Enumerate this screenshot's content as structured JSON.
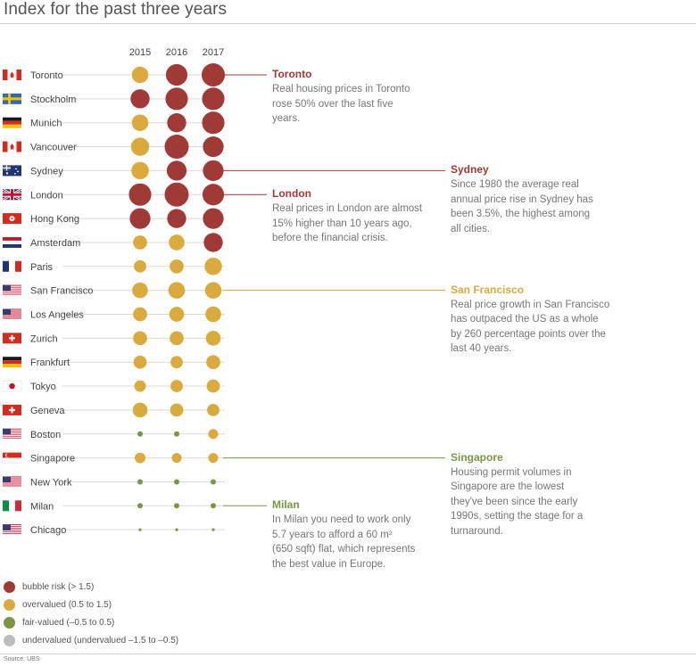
{
  "title": "Index for the past three years",
  "source": "Source: UBS",
  "colors": {
    "bubble": "#a03a36",
    "over": "#dbaa3c",
    "fair": "#7c9544",
    "under": "#bdbdbd"
  },
  "chart_data": {
    "type": "scatter",
    "years": [
      "2015",
      "2016",
      "2017"
    ],
    "rows": [
      {
        "city": "Toronto",
        "flag": "canada-flag-icon",
        "values": [
          1.3,
          1.9,
          2.1
        ]
      },
      {
        "city": "Stockholm",
        "flag": "sweden-flag-icon",
        "values": [
          1.6,
          2.0,
          2.0
        ]
      },
      {
        "city": "Munich",
        "flag": "germany-flag-icon",
        "values": [
          1.3,
          1.6,
          2.0
        ]
      },
      {
        "city": "Vancouver",
        "flag": "canada-flag-icon",
        "values": [
          1.5,
          2.2,
          1.8
        ]
      },
      {
        "city": "Sydney",
        "flag": "australia-flag-icon",
        "values": [
          1.4,
          1.7,
          1.8
        ]
      },
      {
        "city": "London",
        "flag": "uk-flag-icon",
        "values": [
          2.0,
          2.2,
          1.9
        ]
      },
      {
        "city": "Hong Kong",
        "flag": "hong-kong-flag-icon",
        "values": [
          1.8,
          1.6,
          1.8
        ]
      },
      {
        "city": "Amsterdam",
        "flag": "netherlands-flag-icon",
        "values": [
          1.0,
          1.2,
          1.6
        ]
      },
      {
        "city": "Paris",
        "flag": "france-flag-icon",
        "values": [
          0.8,
          1.0,
          1.4
        ]
      },
      {
        "city": "San Francisco",
        "flag": "usa-flag-icon",
        "values": [
          1.2,
          1.3,
          1.3
        ]
      },
      {
        "city": "Los Angeles",
        "flag": "usa-flag-icon",
        "values": [
          1.0,
          1.1,
          1.2
        ]
      },
      {
        "city": "Zurich",
        "flag": "switzerland-flag-icon",
        "values": [
          1.0,
          1.0,
          1.1
        ]
      },
      {
        "city": "Frankfurt",
        "flag": "germany-flag-icon",
        "values": [
          0.9,
          0.8,
          1.0
        ]
      },
      {
        "city": "Tokyo",
        "flag": "japan-flag-icon",
        "values": [
          0.7,
          0.8,
          0.9
        ]
      },
      {
        "city": "Geneva",
        "flag": "switzerland-flag-icon",
        "values": [
          1.1,
          0.9,
          0.8
        ]
      },
      {
        "city": "Boston",
        "flag": "usa-flag-icon",
        "values": [
          0.3,
          0.4,
          0.5
        ]
      },
      {
        "city": "Singapore",
        "flag": "singapore-flag-icon",
        "values": [
          0.6,
          0.5,
          0.5
        ]
      },
      {
        "city": "New York",
        "flag": "usa-flag-icon",
        "values": [
          0.3,
          0.3,
          0.3
        ]
      },
      {
        "city": "Milan",
        "flag": "italy-flag-icon",
        "values": [
          0.1,
          0.1,
          0.2
        ]
      },
      {
        "city": "Chicago",
        "flag": "usa-flag-icon",
        "values": [
          -0.1,
          -0.1,
          -0.2
        ]
      }
    ],
    "categories": [
      {
        "key": "bubble",
        "label": "bubble risk  (> 1.5)"
      },
      {
        "key": "over",
        "label": "overvalued (0.5 to 1.5)"
      },
      {
        "key": "fair",
        "label": "fair-valued (–0.5 to 0.5)"
      },
      {
        "key": "under",
        "label": "undervalued (undervalued –1.5 to –0.5)"
      }
    ],
    "annotations": [
      {
        "city": "Toronto",
        "heading": "Toronto",
        "color": "bubble",
        "lines": [
          "Real housing prices in Toronto",
          "rose 50% over the last five",
          "years."
        ]
      },
      {
        "city": "London",
        "heading": "London",
        "color": "bubble",
        "lines": [
          "Real prices in London are almost",
          "15% higher than 10 years ago,",
          "before the financial crisis."
        ]
      },
      {
        "city": "Sydney",
        "heading": "Sydney",
        "color": "bubble",
        "lines": [
          "Since 1980 the average real",
          "annual price rise in Sydney has",
          "been 3.5%, the highest among",
          "all cities."
        ]
      },
      {
        "city": "San Francisco",
        "heading": "San Francisco",
        "color": "over",
        "lines": [
          "Real price growth in San Francisco",
          "has outpaced the US as a whole",
          "by 260 percentage points over the",
          "last 40 years."
        ]
      },
      {
        "city": "Singapore",
        "heading": "Singapore",
        "color": "fair",
        "lines": [
          "Housing permit volumes in",
          "Singapore are the lowest",
          "they've been since the early",
          "1990s, setting the stage for a",
          "turnaround."
        ]
      },
      {
        "city": "Milan",
        "heading": "Milan",
        "color": "fair",
        "lines": [
          "In Milan you need to work only",
          "5.7 years to afford a 60 m²",
          "(650 sqft) flat, which represents",
          "the best value in Europe."
        ]
      }
    ]
  }
}
